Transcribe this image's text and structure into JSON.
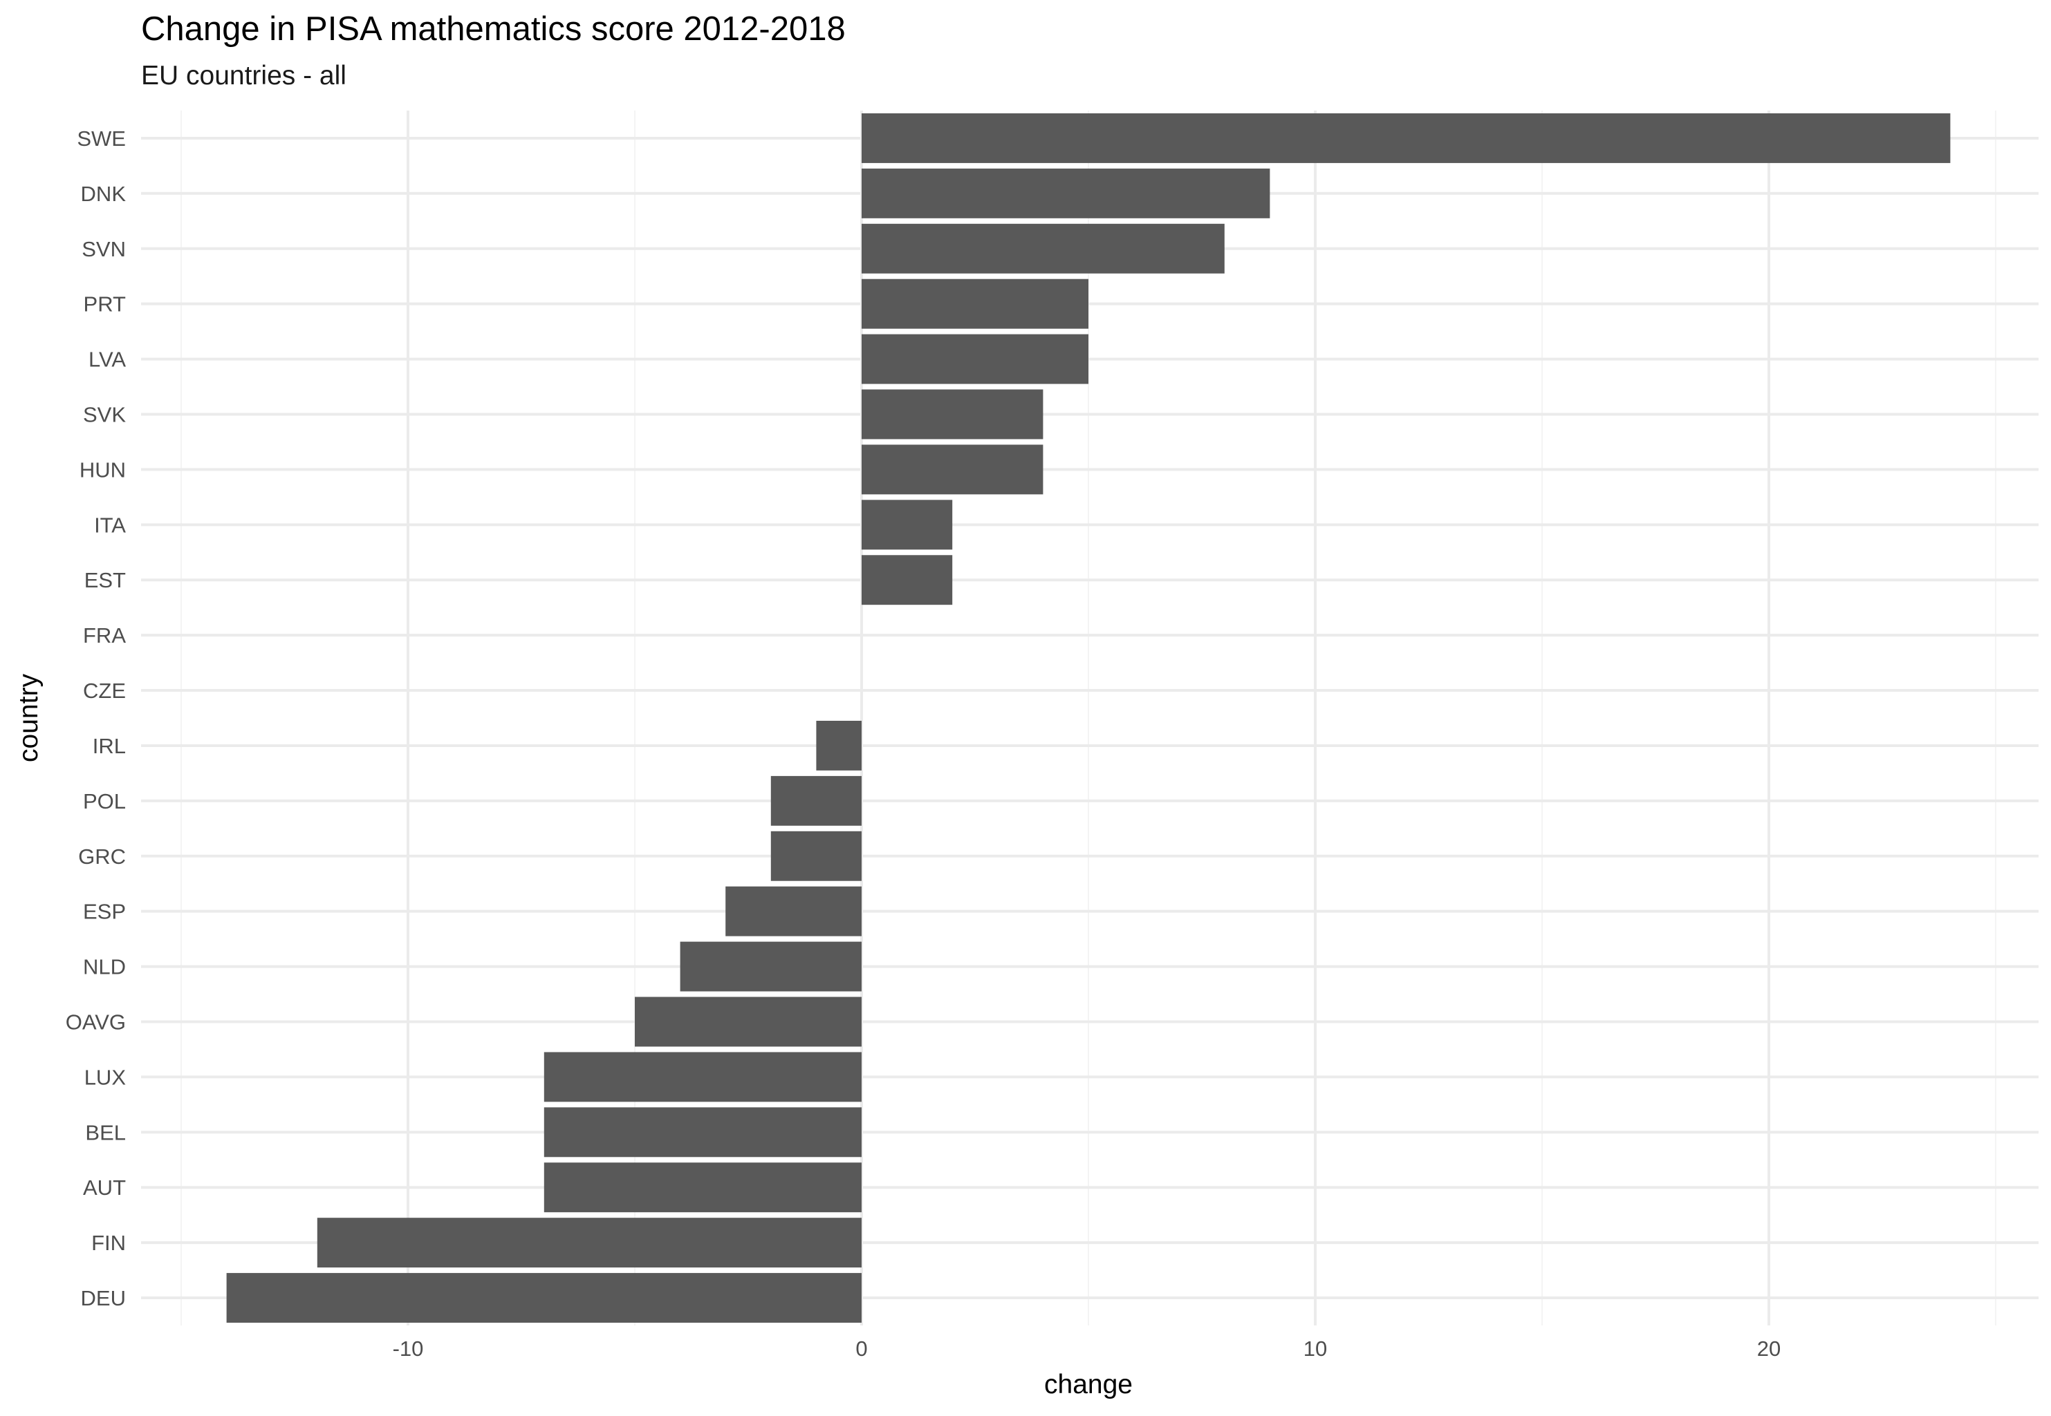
{
  "chart_data": {
    "type": "bar",
    "orientation": "horizontal",
    "title": "Change in PISA mathematics score 2012-2018",
    "subtitle": "EU countries - all",
    "xlabel": "change",
    "ylabel": "country",
    "categories": [
      "SWE",
      "DNK",
      "SVN",
      "PRT",
      "LVA",
      "SVK",
      "HUN",
      "ITA",
      "EST",
      "FRA",
      "CZE",
      "IRL",
      "POL",
      "GRC",
      "ESP",
      "NLD",
      "OAVG",
      "LUX",
      "BEL",
      "AUT",
      "FIN",
      "DEU"
    ],
    "values": [
      24,
      9,
      8,
      5,
      5,
      4,
      4,
      2,
      2,
      0,
      0,
      -1,
      -2,
      -2,
      -3,
      -4,
      -5,
      -7,
      -7,
      -7,
      -12,
      -14
    ],
    "xlim": [
      -15,
      25
    ],
    "x_ticks": [
      -10,
      0,
      10,
      20
    ],
    "x_tick_labels": [
      "-10",
      "0",
      "10",
      "20"
    ],
    "grid": true,
    "legend": "none",
    "colors": {
      "bar": "#595959",
      "grid_major": "#ebebeb",
      "grid_minor": "#f4f4f4",
      "text": "#4d4d4d",
      "title": "#000000",
      "background": "#ffffff"
    }
  }
}
